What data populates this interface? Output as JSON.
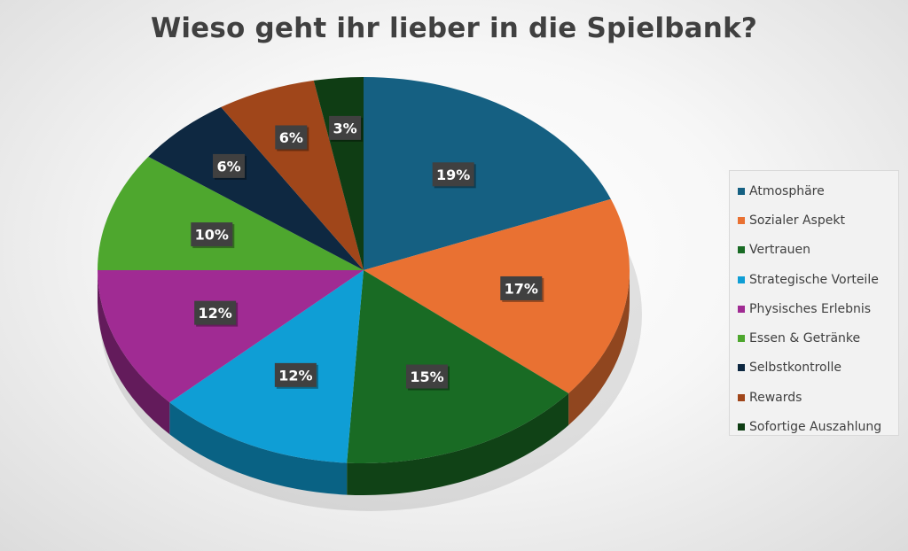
{
  "chart_data": {
    "type": "pie",
    "title": "Wieso geht ihr lieber in die Spielbank?",
    "legend_position": "right",
    "slices": [
      {
        "label": "Atmosphäre",
        "value": 19,
        "data_label": "19%",
        "color": "#156082"
      },
      {
        "label": "Sozialer Aspekt",
        "value": 17,
        "data_label": "17%",
        "color": "#E97132"
      },
      {
        "label": "Vertrauen",
        "value": 15,
        "data_label": "15%",
        "color": "#196B24"
      },
      {
        "label": "Strategische Vorteile",
        "value": 12,
        "data_label": "12%",
        "color": "#0F9ED5"
      },
      {
        "label": "Physisches Erlebnis",
        "value": 12,
        "data_label": "12%",
        "color": "#A02B93"
      },
      {
        "label": "Essen & Getränke",
        "value": 10,
        "data_label": "10%",
        "color": "#4EA72E"
      },
      {
        "label": "Selbstkontrolle",
        "value": 6,
        "data_label": "6%",
        "color": "#0E2841"
      },
      {
        "label": "Rewards",
        "value": 6,
        "data_label": "6%",
        "color": "#A0461A"
      },
      {
        "label": "Sofortige Auszahlung",
        "value": 3,
        "data_label": "3%",
        "color": "#0F3D14"
      }
    ]
  }
}
